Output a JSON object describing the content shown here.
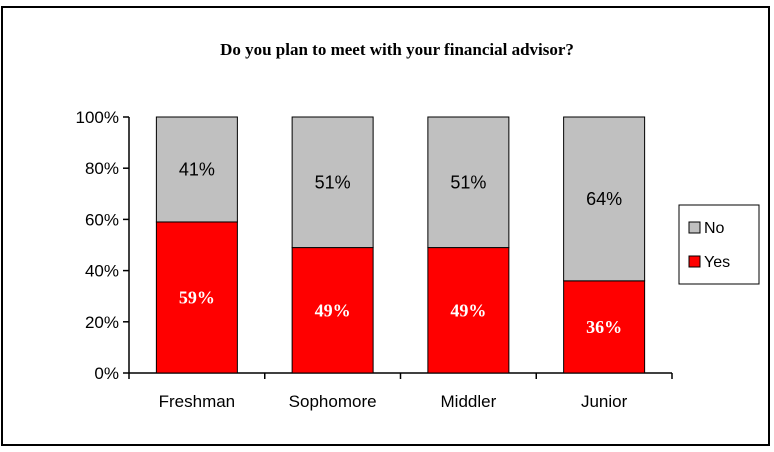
{
  "chart_data": {
    "type": "bar",
    "stacked": true,
    "title": "Do you plan to meet with your financial advisor?",
    "categories": [
      "Freshman",
      "Sophomore",
      "Middler",
      "Junior"
    ],
    "series": [
      {
        "name": "Yes",
        "values": [
          59,
          49,
          49,
          36
        ],
        "labels": [
          "59%",
          "49%",
          "49%",
          "36%"
        ],
        "color": "#ff0000"
      },
      {
        "name": "No",
        "values": [
          41,
          51,
          51,
          64
        ],
        "labels": [
          "41%",
          "51%",
          "51%",
          "64%"
        ],
        "color": "#c0c0c0"
      }
    ],
    "ylim": [
      0,
      100
    ],
    "yticks": [
      "0%",
      "20%",
      "40%",
      "60%",
      "80%",
      "100%"
    ],
    "legend": "right",
    "legend_order": [
      "No",
      "Yes"
    ],
    "grid": false
  }
}
